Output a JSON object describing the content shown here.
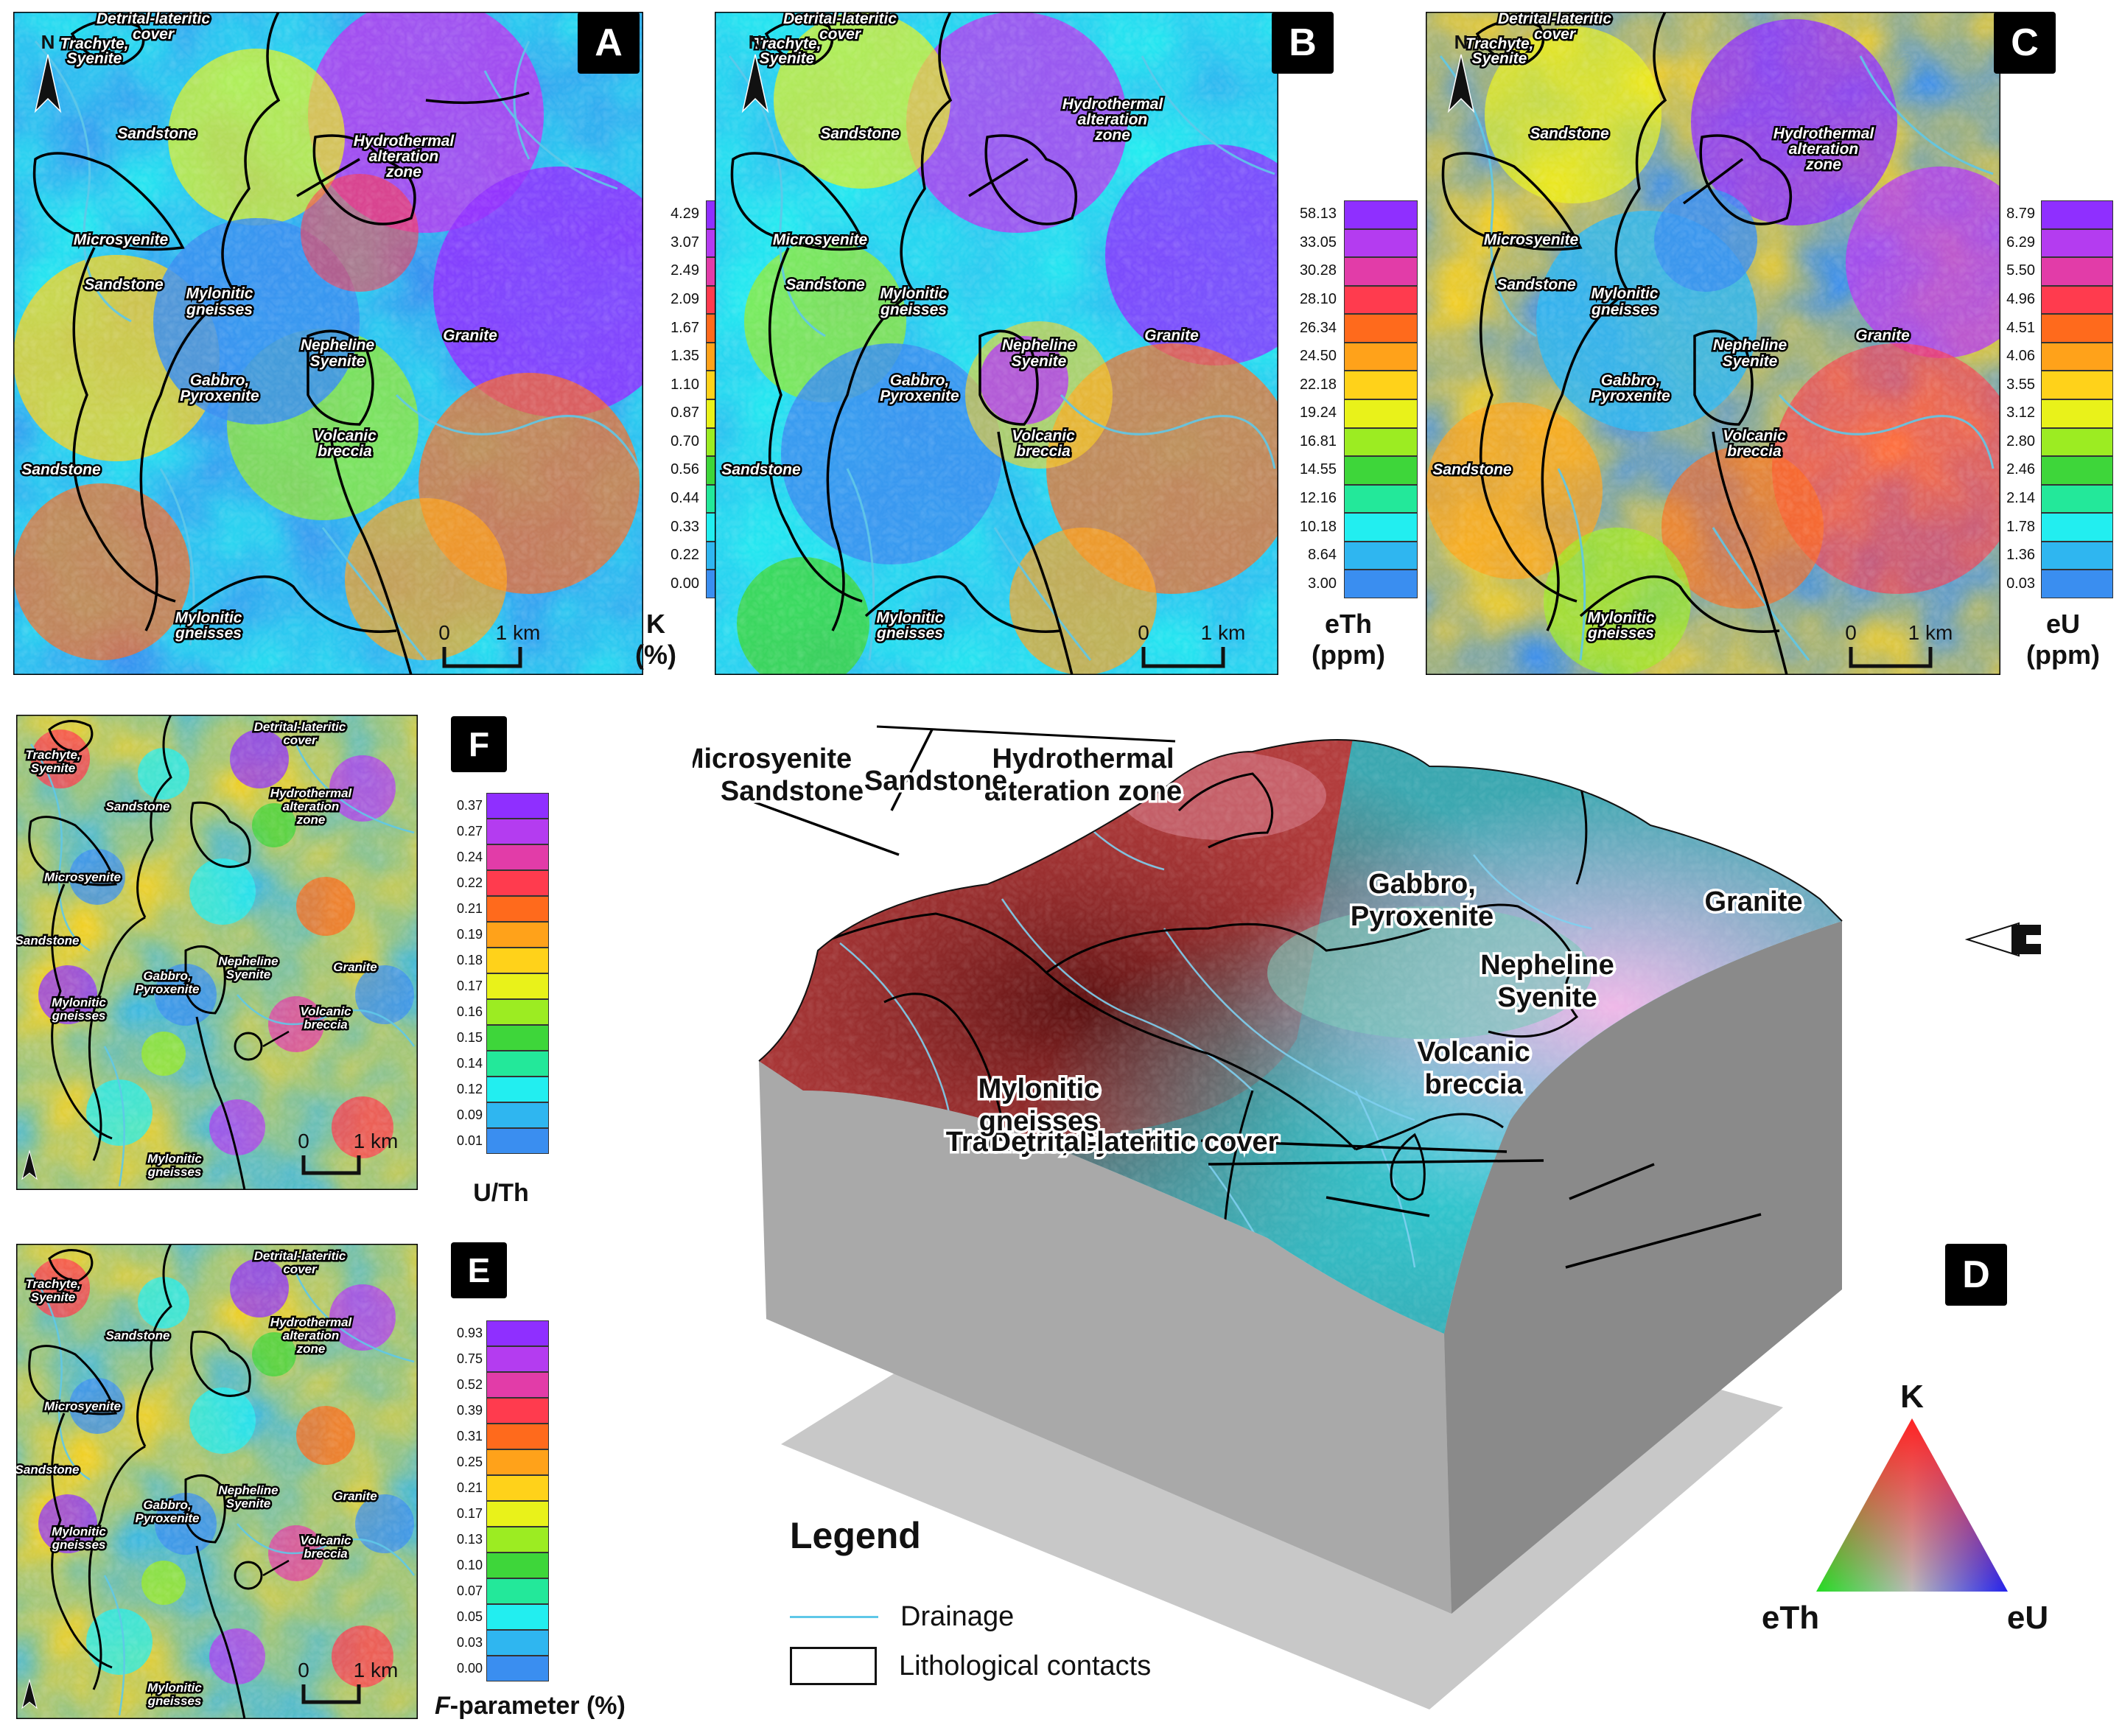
{
  "panels": {
    "A": {
      "badge": "A",
      "unit_line1": "K",
      "unit_line2": "(%)",
      "colorbar": [
        "4.29",
        "3.07",
        "2.49",
        "2.09",
        "1.67",
        "1.35",
        "1.10",
        "0.87",
        "0.70",
        "0.56",
        "0.44",
        "0.33",
        "0.22",
        "0.00"
      ]
    },
    "B": {
      "badge": "B",
      "unit_line1": "eTh",
      "unit_line2": "(ppm)",
      "colorbar": [
        "58.13",
        "33.05",
        "30.28",
        "28.10",
        "26.34",
        "24.50",
        "22.18",
        "19.24",
        "16.81",
        "14.55",
        "12.16",
        "10.18",
        "8.64",
        "3.00"
      ]
    },
    "C": {
      "badge": "C",
      "unit_line1": "eU",
      "unit_line2": "(ppm)",
      "colorbar": [
        "8.79",
        "6.29",
        "5.50",
        "4.96",
        "4.51",
        "4.06",
        "3.55",
        "3.12",
        "2.80",
        "2.46",
        "2.14",
        "1.78",
        "1.36",
        "0.03"
      ]
    },
    "F": {
      "badge": "F",
      "unit_line1": "U/Th",
      "colorbar": [
        "0.37",
        "0.27",
        "0.24",
        "0.22",
        "0.21",
        "0.19",
        "0.18",
        "0.17",
        "0.16",
        "0.15",
        "0.14",
        "0.12",
        "0.09",
        "0.01"
      ]
    },
    "E": {
      "badge": "E",
      "unit_italic": "F",
      "unit_rest": "-parameter (%)",
      "colorbar": [
        "0.93",
        "0.75",
        "0.52",
        "0.39",
        "0.31",
        "0.25",
        "0.21",
        "0.17",
        "0.13",
        "0.10",
        "0.07",
        "0.05",
        "0.03",
        "0.00"
      ]
    },
    "D": {
      "badge": "D"
    }
  },
  "scale": {
    "zero": "0",
    "one": "1 km"
  },
  "north": "N",
  "map_labels": {
    "detrital1": "Detrital-lateritic",
    "detrital2": "cover",
    "trachyte1": "Trachyte,",
    "trachyte2": "Syenite",
    "sandstone": "Sandstone",
    "hydro1": "Hydrothermal",
    "hydro2": "alteration",
    "hydro3": "zone",
    "microsyenite": "Microsyenite",
    "mylonitic1": "Mylonitic",
    "mylonitic2": "gneisses",
    "nepheline1": "Nepheline",
    "nepheline2": "Syenite",
    "granite": "Granite",
    "gabbro1": "Gabbro,",
    "gabbro2": "Pyroxenite",
    "volcanic1": "Volcanic",
    "volcanic2": "breccia"
  },
  "block_labels": {
    "trachyte": "Trachyte, Syenite",
    "detrital": "Detrital-lateritic cover",
    "microsyenite": "Microsyenite",
    "hydro1": "Hydrothermal",
    "hydro2": "alteration zone",
    "sandstone": "Sandstone",
    "mylonitic1": "Mylonitic",
    "mylonitic2": "gneisses",
    "gabbro1": "Gabbro,",
    "gabbro2": "Pyroxenite",
    "granite": "Granite",
    "nepheline1": "Nepheline",
    "nepheline2": "Syenite",
    "volcanic1": "Volcanic",
    "volcanic2": "breccia"
  },
  "ternary": {
    "top": "K",
    "left": "eTh",
    "right": "eU"
  },
  "legend": {
    "title": "Legend",
    "drainage": "Drainage",
    "contacts": "Lithological contacts"
  },
  "colors": {
    "palette": [
      "#8f2fff",
      "#b43cf0",
      "#e23ca8",
      "#ff3b4e",
      "#ff6a1c",
      "#ffa21a",
      "#ffd21a",
      "#e9f21a",
      "#9cec22",
      "#3ed63a",
      "#23e89a",
      "#22eef0",
      "#2fb6f0",
      "#3a8ef0"
    ],
    "drainage": "#5fc8e8"
  }
}
